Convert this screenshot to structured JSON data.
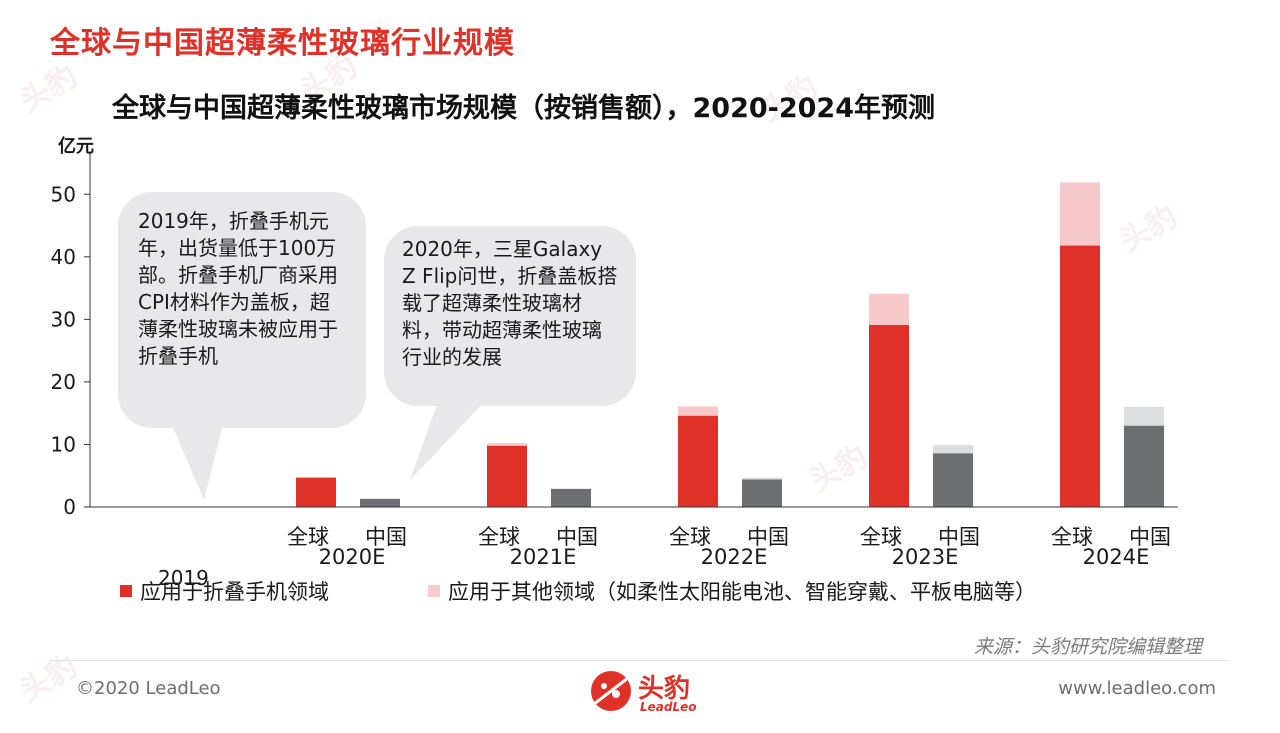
{
  "page_title": "全球与中国超薄柔性玻璃行业规模",
  "colors": {
    "global_core": "#e03128",
    "global_other": "#f7c9cb",
    "china_core": "#6d6e71",
    "china_other": "#dcdddf",
    "accent": "#e03128"
  },
  "chart_data": {
    "type": "bar",
    "title": "全球与中国超薄柔性玻璃市场规模（按销售额），2020-2024年预测",
    "ylabel": "亿元",
    "ylim": [
      0,
      55
    ],
    "yticks": [
      0,
      10,
      20,
      30,
      40,
      50
    ],
    "groups": [
      "2020E",
      "2021E",
      "2022E",
      "2023E",
      "2024E"
    ],
    "sublabels": [
      "全球",
      "中国"
    ],
    "stack_series": [
      {
        "name": "应用于折叠手机领域"
      },
      {
        "name": "应用于其他领域（如柔性太阳能电池、智能穿戴、平板电脑等）"
      }
    ],
    "global": {
      "core": [
        4.7,
        9.8,
        14.6,
        29.1,
        41.8
      ],
      "other": [
        0,
        0.4,
        1.5,
        5.0,
        10.1
      ]
    },
    "china": {
      "core": [
        1.3,
        2.9,
        4.4,
        8.6,
        13.0
      ],
      "other": [
        0,
        0,
        0.3,
        1.3,
        3.0
      ]
    },
    "legend_position": "bottom",
    "grid": false
  },
  "annotations": {
    "bubble_2019": "2019年，折叠手机元年，出货量低于100万部。折叠手机厂商采用CPI材料作为盖板，超薄柔性玻璃未被应用于折叠手机",
    "bubble_2020": "2020年，三星Galaxy Z Flip问世，折叠盖板搭载了超薄柔性玻璃材料，带动超薄柔性玻璃行业的发展",
    "year_2019": "2019"
  },
  "watermark": {
    "text": "头豹",
    "sub": "LeadLeo"
  },
  "footer": {
    "source": "来源：头豹研究院编辑整理",
    "copyright": "©2020 LeadLeo",
    "website": "www.leadleo.com",
    "logo_name": "头豹",
    "logo_sub": "LeadLeo"
  }
}
